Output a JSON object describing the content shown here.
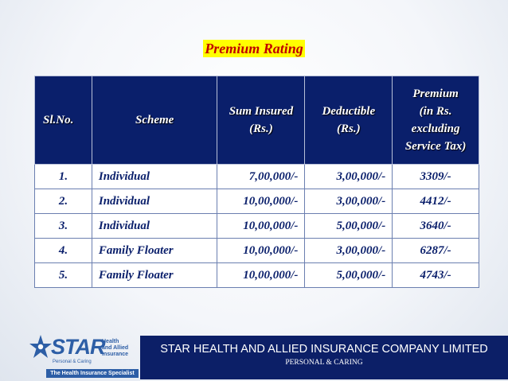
{
  "title": "Premium Rating",
  "table": {
    "headers": {
      "slno": "Sl.No.",
      "scheme": "Scheme",
      "sum_insured_1": "Sum Insured",
      "sum_insured_2": "(Rs.)",
      "deductible_1": "Deductible",
      "deductible_2": "(Rs.)",
      "premium_1": "Premium",
      "premium_2": "(in Rs.",
      "premium_3": "excluding",
      "premium_4": "Service Tax)"
    },
    "rows": [
      {
        "slno": "1.",
        "scheme": "Individual",
        "sum_insured": "7,00,000/-",
        "deductible": "3,00,000/-",
        "premium": "3309/-"
      },
      {
        "slno": "2.",
        "scheme": "Individual",
        "sum_insured": "10,00,000/-",
        "deductible": "3,00,000/-",
        "premium": "4412/-"
      },
      {
        "slno": "3.",
        "scheme": "Individual",
        "sum_insured": "10,00,000/-",
        "deductible": "5,00,000/-",
        "premium": "3640/-"
      },
      {
        "slno": "4.",
        "scheme": "Family Floater",
        "sum_insured": "10,00,000/-",
        "deductible": "3,00,000/-",
        "premium": "6287/-"
      },
      {
        "slno": "5.",
        "scheme": "Family Floater",
        "sum_insured": "10,00,000/-",
        "deductible": "5,00,000/-",
        "premium": "4743/-"
      }
    ]
  },
  "footer": {
    "logo_text": "STAR",
    "logo_health_1": "Health",
    "logo_health_2": "and Allied",
    "logo_health_3": "Insurance",
    "logo_tagline": "Personal & Caring",
    "logo_specialist": "The Health Insurance Specialist",
    "company_name": "STAR HEALTH AND ALLIED INSURANCE COMPANY LIMITED",
    "company_tagline": "PERSONAL & CARING"
  },
  "colors": {
    "header_bg": "#0a1f6b",
    "title_color": "#c00000",
    "title_highlight": "#ffff00",
    "footer_bar": "#0c1f67",
    "brand_blue": "#2d5ea6"
  }
}
